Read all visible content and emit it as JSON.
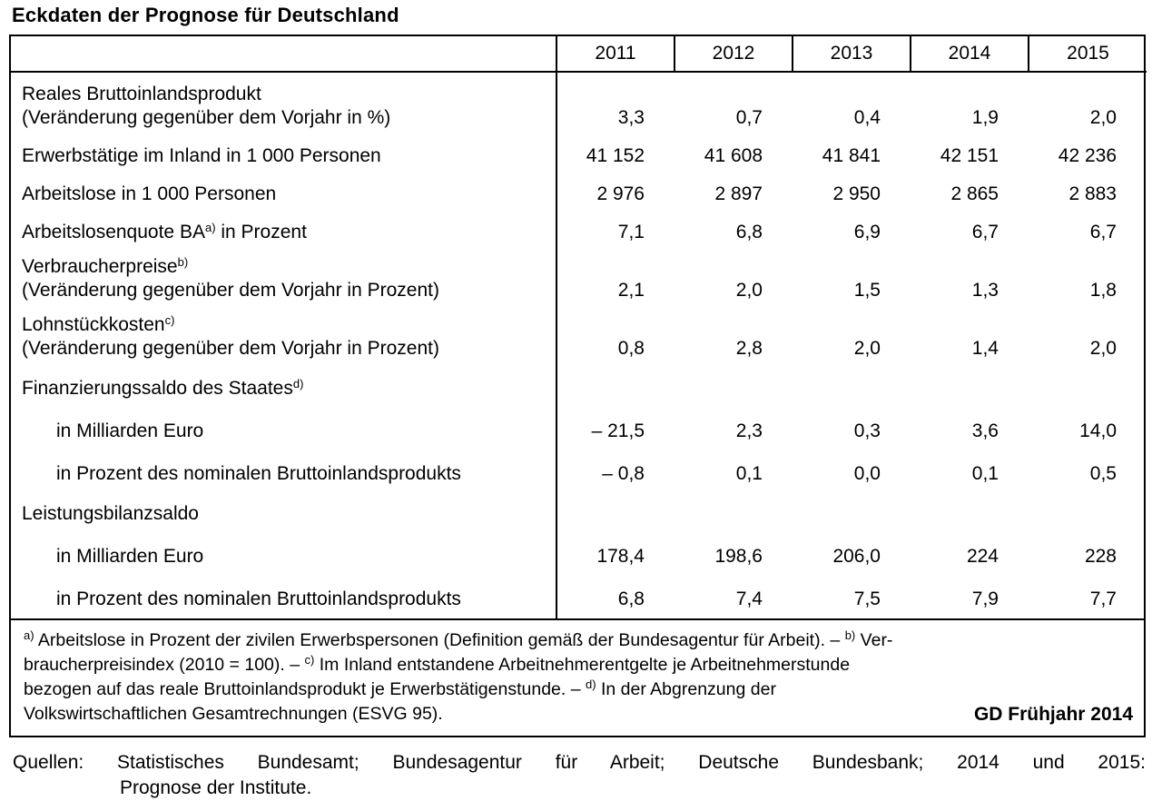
{
  "title": "Eckdaten der Prognose für Deutschland",
  "table": {
    "years": [
      "2011",
      "2012",
      "2013",
      "2014",
      "2015"
    ],
    "rows": [
      {
        "label": "Reales Bruttoinlandsprodukt",
        "label2": "(Veränderung gegenüber dem Vorjahr in %)",
        "values": [
          "3,3",
          "0,7",
          "0,4",
          "1,9",
          "2,0"
        ]
      },
      {
        "label": "Erwerbstätige im Inland in 1 000 Personen",
        "values": [
          "41 152",
          "41 608",
          "41 841",
          "42 151",
          "42 236"
        ]
      },
      {
        "label": "Arbeitslose in 1 000 Personen",
        "values": [
          "2 976",
          "2 897",
          "2 950",
          "2 865",
          "2 883"
        ]
      },
      {
        "label": "Arbeitslosenquote BA",
        "sup": "a)",
        "label_tail": " in Prozent",
        "values": [
          "7,1",
          "6,8",
          "6,9",
          "6,7",
          "6,7"
        ]
      },
      {
        "label": "Verbraucherpreise",
        "sup": "b)",
        "label2": "(Veränderung gegenüber dem Vorjahr in Prozent)",
        "values": [
          "2,1",
          "2,0",
          "1,5",
          "1,3",
          "1,8"
        ]
      },
      {
        "label": "Lohnstückkosten",
        "sup": "c)",
        "label2": "(Veränderung gegenüber dem Vorjahr in Prozent)",
        "values": [
          "0,8",
          "2,8",
          "2,0",
          "1,4",
          "2,0"
        ]
      },
      {
        "label": "Finanzierungssaldo des Staates",
        "sup": "d)",
        "group": true,
        "values": [
          "",
          "",
          "",
          "",
          ""
        ]
      },
      {
        "label": "in Milliarden Euro",
        "indent": true,
        "values": [
          "– 21,5",
          "2,3",
          "0,3",
          "3,6",
          "14,0"
        ]
      },
      {
        "label": "in Prozent des nominalen Bruttoinlandsprodukts",
        "indent": true,
        "values": [
          "– 0,8",
          "0,1",
          "0,0",
          "0,1",
          "0,5"
        ]
      },
      {
        "label": "Leistungsbilanzsaldo",
        "group": true,
        "values": [
          "",
          "",
          "",
          "",
          ""
        ]
      },
      {
        "label": "in Milliarden Euro",
        "indent": true,
        "values": [
          "178,4",
          "198,6",
          "206,0",
          "224",
          "228"
        ]
      },
      {
        "label": "in Prozent des nominalen Bruttoinlandsprodukts",
        "indent": true,
        "values": [
          "6,8",
          "7,4",
          "7,5",
          "7,9",
          "7,7"
        ]
      }
    ]
  },
  "footnotes": {
    "lines": [
      [
        {
          "sup": "a)"
        },
        {
          "text": " Arbeitslose in Prozent der zivilen Erwerbspersonen (Definition gemäß der Bundesagentur für Arbeit). – "
        },
        {
          "sup": "b)"
        },
        {
          "text": " Ver-"
        }
      ],
      [
        {
          "text": "braucherpreisindex (2010 = 100). – "
        },
        {
          "sup": "c)"
        },
        {
          "text": " Im Inland entstandene Arbeitnehmerentgelte je Arbeitnehmerstunde"
        }
      ],
      [
        {
          "text": "bezogen auf das reale Bruttoinlandsprodukt je Erwerbstätigenstunde. – "
        },
        {
          "sup": "d)"
        },
        {
          "text": " In der Abgrenzung der"
        }
      ],
      [
        {
          "text": "Volkswirtschaftlichen Gesamtrechnungen (ESVG 95)."
        }
      ]
    ],
    "stamp": "GD Frühjahr 2014"
  },
  "source": {
    "line1": "Quellen: Statistisches Bundesamt; Bundesagentur für Arbeit; Deutsche Bundesbank; 2014 und 2015:",
    "line2": "Prognose der Institute."
  },
  "colors": {
    "text": "#000000",
    "border": "#000000",
    "background": "#ffffff"
  }
}
